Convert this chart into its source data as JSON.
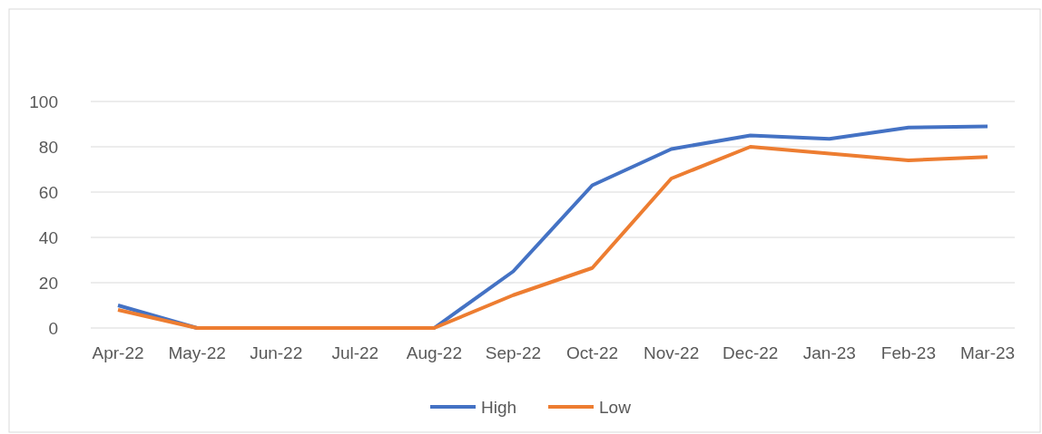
{
  "chart_data": {
    "type": "line",
    "categories": [
      "Apr-22",
      "May-22",
      "Jun-22",
      "Jul-22",
      "Aug-22",
      "Sep-22",
      "Oct-22",
      "Nov-22",
      "Dec-22",
      "Jan-23",
      "Feb-23",
      "Mar-23"
    ],
    "series": [
      {
        "name": "High",
        "color": "#4472c4",
        "values": [
          10,
          0,
          0,
          0,
          0,
          25,
          63,
          79,
          85,
          83.5,
          88.5,
          89
        ]
      },
      {
        "name": "Low",
        "color": "#ed7d31",
        "values": [
          8,
          0,
          0,
          0,
          0,
          14.5,
          26.5,
          66,
          80,
          77,
          74,
          75.5
        ]
      }
    ],
    "ylim": [
      0,
      100
    ],
    "yticks": [
      0,
      20,
      40,
      60,
      80,
      100
    ],
    "grid": "y",
    "legend": "bottom",
    "marker": "none",
    "line_style": "solid"
  }
}
